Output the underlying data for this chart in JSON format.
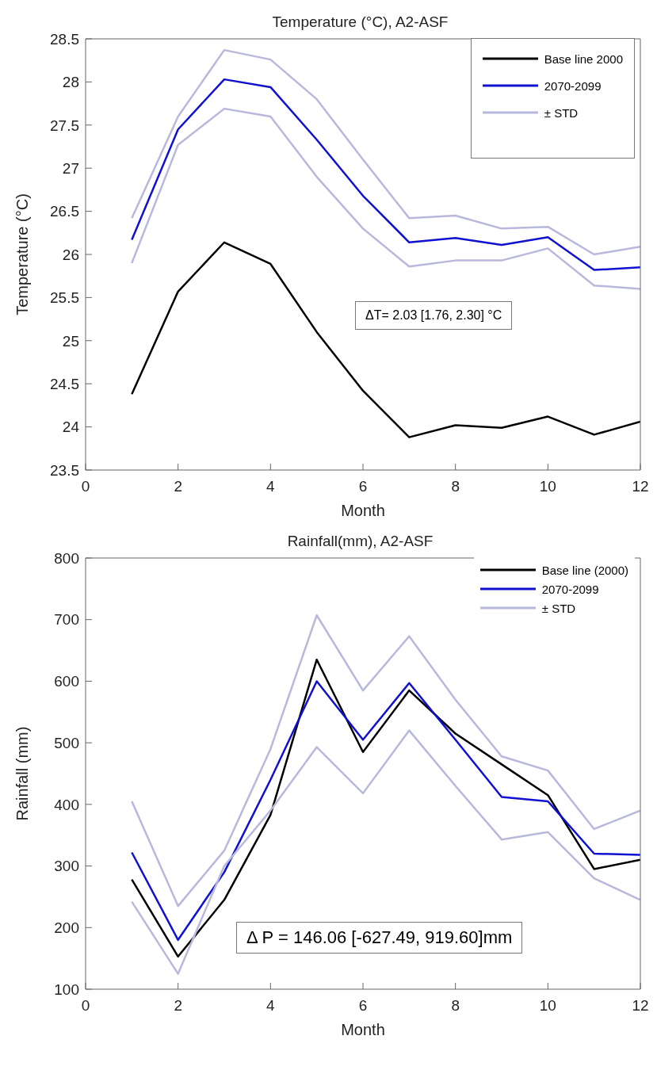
{
  "chart_data": [
    {
      "type": "line",
      "title": "Temperature (°C), A2-ASF",
      "xlabel": "Month",
      "ylabel": "Temperature (°C)",
      "x": [
        1,
        2,
        3,
        4,
        5,
        6,
        7,
        8,
        9,
        10,
        11,
        12
      ],
      "xlim": [
        0,
        12
      ],
      "xticks": [
        0,
        2,
        4,
        6,
        8,
        10,
        12
      ],
      "ylim": [
        23.5,
        28.5
      ],
      "yticks": [
        23.5,
        24,
        24.5,
        25,
        25.5,
        26,
        26.5,
        27,
        27.5,
        28,
        28.5
      ],
      "legend": "top right",
      "marker": "none",
      "line_style": "solid",
      "annotations": [
        "ΔT= 2.03 [1.76, 2.30] °C"
      ],
      "series": [
        {
          "name": "Base line 2000",
          "color": "#000000",
          "values": [
            24.38,
            25.57,
            26.14,
            25.89,
            25.1,
            24.42,
            23.88,
            24.02,
            23.99,
            24.12,
            23.91,
            24.06
          ]
        },
        {
          "name": "2070-2099",
          "color": "#1010d0",
          "values": [
            26.17,
            27.45,
            28.03,
            27.94,
            27.33,
            26.68,
            26.14,
            26.19,
            26.11,
            26.2,
            25.82,
            25.85
          ]
        },
        {
          "name": "± STD",
          "color": "#b8b8dc",
          "values": [
            26.42,
            27.6,
            28.37,
            28.26,
            27.8,
            27.1,
            26.42,
            26.45,
            26.3,
            26.32,
            26.0,
            26.09
          ]
        },
        {
          "color": "#b8b8dc",
          "values": [
            25.9,
            27.27,
            27.69,
            27.6,
            26.9,
            26.3,
            25.86,
            25.93,
            25.93,
            26.07,
            25.64,
            25.6
          ]
        }
      ]
    },
    {
      "type": "line",
      "title": "Rainfall(mm), A2-ASF",
      "xlabel": "Month",
      "ylabel": "Rainfall (mm)",
      "x": [
        1,
        2,
        3,
        4,
        5,
        6,
        7,
        8,
        9,
        10,
        11,
        12
      ],
      "xlim": [
        0,
        12
      ],
      "xticks": [
        0,
        2,
        4,
        6,
        8,
        10,
        12
      ],
      "ylim": [
        100,
        800
      ],
      "yticks": [
        100,
        200,
        300,
        400,
        500,
        600,
        700,
        800
      ],
      "legend": "top right",
      "marker": "none",
      "line_style": "solid",
      "annotations": [
        "Δ P = 146.06 [-627.49, 919.60]mm"
      ],
      "series": [
        {
          "name": "Base line (2000)",
          "color": "#000000",
          "values": [
            278,
            153,
            245,
            383,
            635,
            485,
            585,
            515,
            465,
            415,
            295,
            310
          ]
        },
        {
          "name": "2070-2099",
          "color": "#1010d0",
          "values": [
            322,
            180,
            290,
            440,
            600,
            505,
            597,
            505,
            412,
            405,
            320,
            318
          ]
        },
        {
          "name": "± STD",
          "color": "#b8b8dc",
          "values": [
            405,
            235,
            325,
            490,
            707,
            585,
            673,
            570,
            478,
            455,
            360,
            390
          ]
        },
        {
          "color": "#b8b8dc",
          "values": [
            242,
            125,
            300,
            390,
            493,
            418,
            520,
            430,
            343,
            355,
            280,
            245
          ]
        }
      ]
    }
  ]
}
